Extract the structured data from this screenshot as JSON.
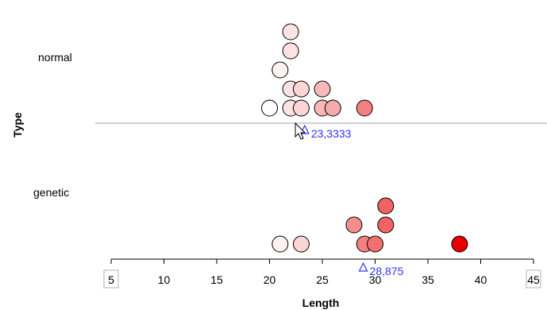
{
  "chart_data": {
    "type": "scatter",
    "xlabel": "Length",
    "ylabel": "Type",
    "xlim": [
      5,
      45
    ],
    "x_ticks": [
      5,
      10,
      15,
      20,
      25,
      30,
      35,
      40,
      45
    ],
    "categories": [
      "normal",
      "genetic"
    ],
    "series": [
      {
        "category": "normal",
        "points": [
          {
            "x": 20,
            "level": 0
          },
          {
            "x": 22,
            "level": 0
          },
          {
            "x": 23,
            "level": 0
          },
          {
            "x": 25,
            "level": 0
          },
          {
            "x": 26,
            "level": 0
          },
          {
            "x": 29,
            "level": 0
          },
          {
            "x": 22,
            "level": 1
          },
          {
            "x": 23,
            "level": 1
          },
          {
            "x": 25,
            "level": 1
          },
          {
            "x": 21,
            "level": 2
          },
          {
            "x": 22,
            "level": 3
          },
          {
            "x": 22,
            "level": 4
          }
        ],
        "mean": 23.3333,
        "mean_label": "23,3333"
      },
      {
        "category": "genetic",
        "points": [
          {
            "x": 21,
            "level": 0
          },
          {
            "x": 23,
            "level": 0
          },
          {
            "x": 29,
            "level": 0
          },
          {
            "x": 30,
            "level": 0
          },
          {
            "x": 38,
            "level": 0
          },
          {
            "x": 28,
            "level": 1
          },
          {
            "x": 31,
            "level": 1
          },
          {
            "x": 31,
            "level": 2
          }
        ],
        "mean": 28.875,
        "mean_label": "28,875"
      }
    ],
    "color_scale": {
      "low": "#ffffff",
      "high": "#e60000",
      "domain": [
        20,
        38
      ]
    },
    "mean_marker_color": "#3333ff",
    "separator_color": "#a0a0a0",
    "grid": false
  }
}
